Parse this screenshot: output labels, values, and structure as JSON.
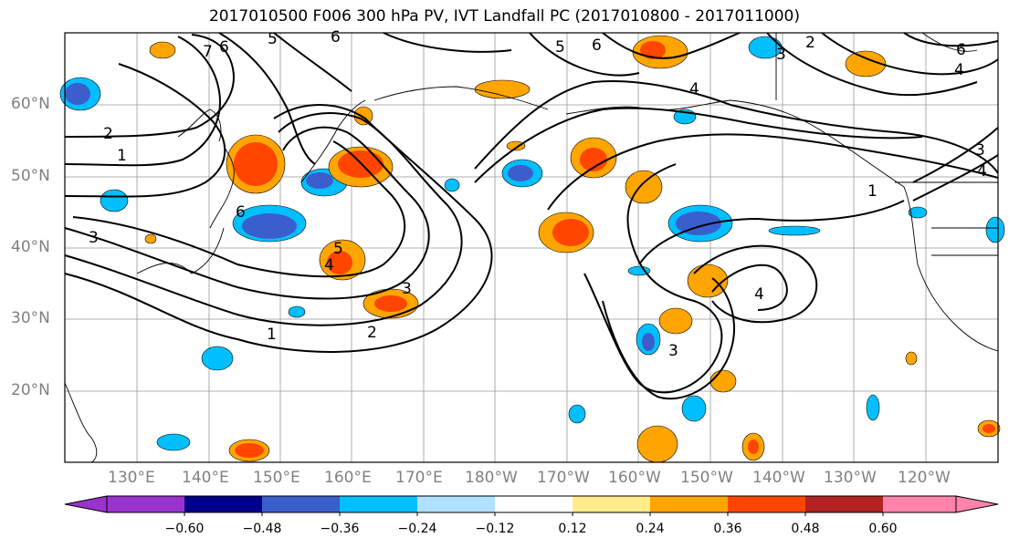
{
  "title": "2017010500 F006 300 hPa PV, IVT Landfall PC (2017010800 - 2017011000)",
  "lat_labels": [
    "60°N",
    "50°N",
    "40°N",
    "30°N",
    "20°N"
  ],
  "lon_labels": [
    "130°E",
    "140°E",
    "150°E",
    "160°E",
    "170°E",
    "180°W",
    "170°W",
    "160°W",
    "150°W",
    "140°W",
    "130°W",
    "120°W"
  ],
  "contour_labels": [
    "1",
    "2",
    "3",
    "4",
    "5",
    "6",
    "7"
  ],
  "colorbar": {
    "ticks": [
      "−0.60",
      "−0.48",
      "−0.36",
      "−0.24",
      "−0.12",
      "0.12",
      "0.24",
      "0.36",
      "0.48",
      "0.60"
    ],
    "colors": [
      "#9a32cd",
      "#00008b",
      "#3a5fcd",
      "#00bfff",
      "#b0e2ff",
      "#ffffff",
      "#ffec8b",
      "#ffa500",
      "#ff4500",
      "#b22222",
      "#ff83aa"
    ]
  }
}
